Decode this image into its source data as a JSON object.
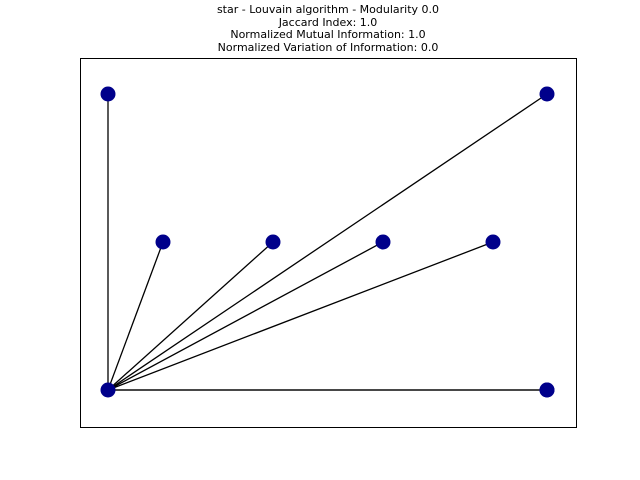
{
  "figure": {
    "title_lines": [
      "star - Louvain algorithm - Modularity 0.0",
      "Jaccard Index: 1.0",
      "Normalized Mutual Information: 1.0",
      "Normalized Variation of Information: 0.0"
    ]
  },
  "graph": {
    "node_color": "#00008b",
    "edge_color": "#000000",
    "nodes": [
      {
        "id": "n0"
      },
      {
        "id": "n1"
      },
      {
        "id": "n2"
      },
      {
        "id": "n3"
      },
      {
        "id": "n4"
      },
      {
        "id": "n5"
      },
      {
        "id": "n6"
      },
      {
        "id": "n7"
      },
      {
        "id": "n8"
      }
    ],
    "edges": [
      [
        "n0",
        "n1"
      ],
      [
        "n0",
        "n2"
      ],
      [
        "n0",
        "n3"
      ],
      [
        "n0",
        "n4"
      ],
      [
        "n0",
        "n5"
      ],
      [
        "n0",
        "n6"
      ],
      [
        "n0",
        "n7"
      ],
      [
        "n0",
        "n8"
      ]
    ]
  }
}
